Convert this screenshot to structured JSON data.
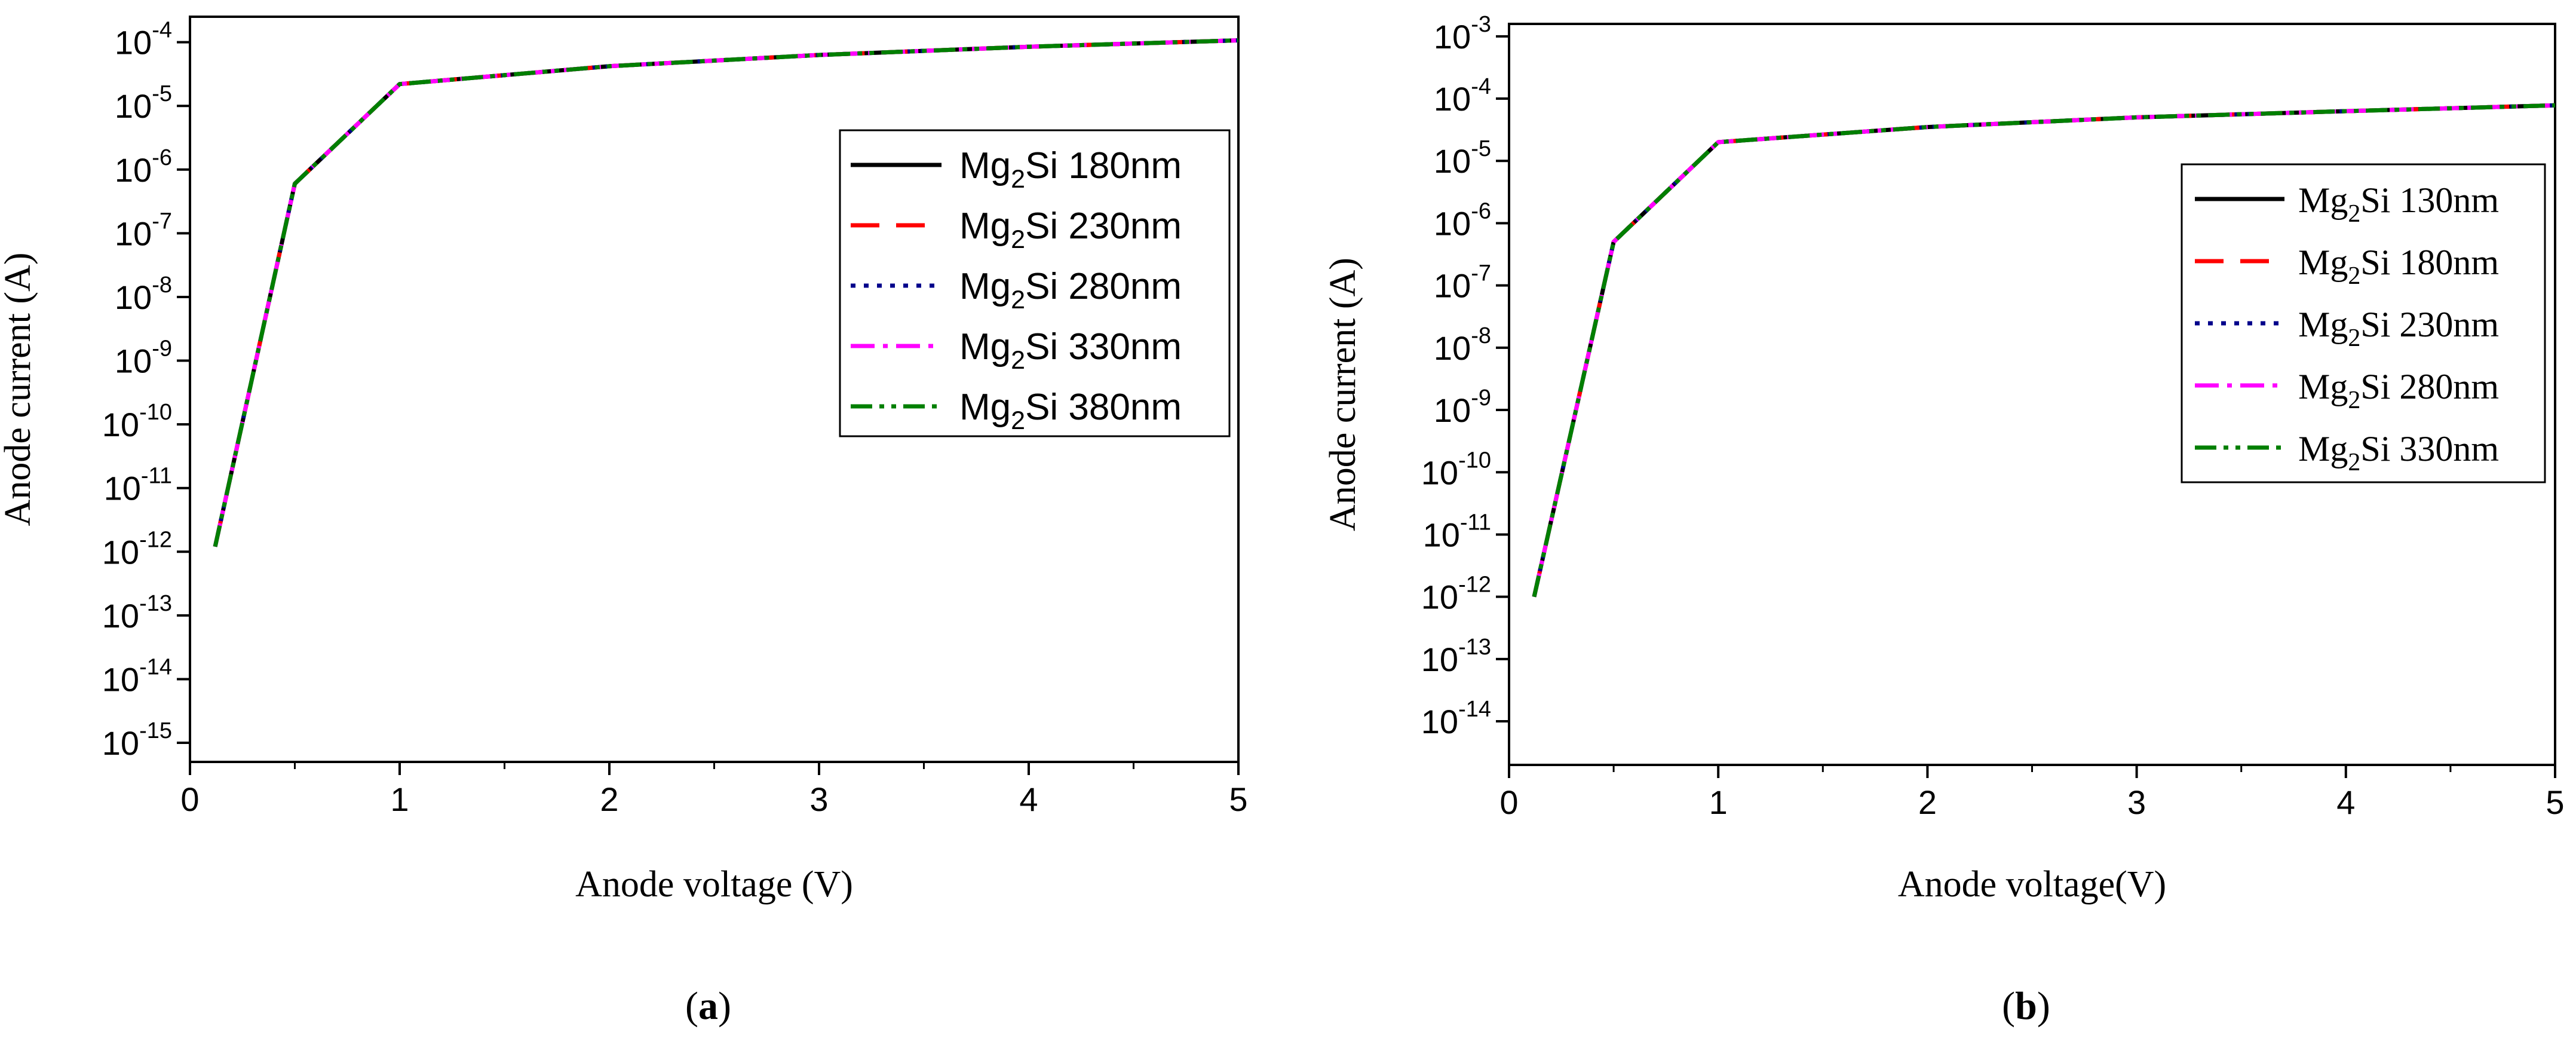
{
  "chart_data": [
    {
      "panel_label": "a",
      "type": "line",
      "xlabel": "Anode voltage (V)",
      "ylabel": "Anode current (A)",
      "xlim": [
        0,
        5
      ],
      "ylim_log10": [
        -15.3,
        -3.6
      ],
      "y_scale": "log",
      "x_ticks": [
        0,
        1,
        2,
        3,
        4,
        5
      ],
      "y_ticks_exp": [
        -4,
        -5,
        -6,
        -7,
        -8,
        -9,
        -10,
        -11,
        -12,
        -13,
        -14,
        -15
      ],
      "grid": false,
      "legend_position": "top-right",
      "legend_font": "sans",
      "x": [
        0.12,
        0.5,
        1,
        2,
        3,
        4,
        5
      ],
      "series": [
        {
          "name_main": "Mg",
          "name_sub": "2",
          "name_rest": "Si  180nm",
          "color": "#000000",
          "dash": "",
          "values": [
            1.2e-12,
            6e-07,
            2.2e-05,
            4.2e-05,
            6.3e-05,
            8.5e-05,
            0.000107
          ]
        },
        {
          "name_main": "Mg",
          "name_sub": "2",
          "name_rest": "Si  230nm",
          "color": "#ff0000",
          "dash": "48 28",
          "values": [
            1.2e-12,
            6e-07,
            2.2e-05,
            4.2e-05,
            6.3e-05,
            8.5e-05,
            0.000107
          ]
        },
        {
          "name_main": "Mg",
          "name_sub": "2",
          "name_rest": "Si  280nm",
          "color": "#00008b",
          "dash": "8 14",
          "values": [
            1.2e-12,
            6e-07,
            2.2e-05,
            4.2e-05,
            6.3e-05,
            8.5e-05,
            0.000107
          ]
        },
        {
          "name_main": "Mg",
          "name_sub": "2",
          "name_rest": "Si  330nm",
          "color": "#ff00ff",
          "dash": "40 14 8 14",
          "values": [
            1.2e-12,
            6e-07,
            2.2e-05,
            4.2e-05,
            6.3e-05,
            8.5e-05,
            0.000107
          ]
        },
        {
          "name_main": "Mg",
          "name_sub": "2",
          "name_rest": "Si  380nm",
          "color": "#007f00",
          "dash": "36 12 8 12 8 12",
          "values": [
            1.2e-12,
            6e-07,
            2.2e-05,
            4.2e-05,
            6.3e-05,
            8.5e-05,
            0.000107
          ]
        }
      ]
    },
    {
      "panel_label": "b",
      "type": "line",
      "xlabel": "Anode voltage(V)",
      "ylabel": "Anode current (A)",
      "xlim": [
        0,
        5
      ],
      "ylim_log10": [
        -14.7,
        -2.8
      ],
      "y_scale": "log",
      "x_ticks": [
        0,
        1,
        2,
        3,
        4,
        5
      ],
      "y_ticks_exp": [
        -3,
        -4,
        -5,
        -6,
        -7,
        -8,
        -9,
        -10,
        -11,
        -12,
        -13,
        -14
      ],
      "grid": false,
      "legend_position": "top-right",
      "legend_font": "serif",
      "x": [
        0.12,
        0.5,
        1,
        2,
        3,
        4,
        5
      ],
      "series": [
        {
          "name_main": "Mg",
          "name_sub": "2",
          "name_rest": "Si 130nm",
          "color": "#000000",
          "dash": "",
          "values": [
            1e-12,
            5e-07,
            2e-05,
            3.5e-05,
            5e-05,
            6.3e-05,
            7.8e-05
          ]
        },
        {
          "name_main": "Mg",
          "name_sub": "2",
          "name_rest": "Si 180nm",
          "color": "#ff0000",
          "dash": "48 28",
          "values": [
            1e-12,
            5e-07,
            2e-05,
            3.5e-05,
            5e-05,
            6.3e-05,
            7.8e-05
          ]
        },
        {
          "name_main": "Mg",
          "name_sub": "2",
          "name_rest": "Si 230nm",
          "color": "#00008b",
          "dash": "8 14",
          "values": [
            1e-12,
            5e-07,
            2e-05,
            3.5e-05,
            5e-05,
            6.3e-05,
            7.8e-05
          ]
        },
        {
          "name_main": "Mg",
          "name_sub": "2",
          "name_rest": "Si 280nm",
          "color": "#ff00ff",
          "dash": "40 14 8 14",
          "values": [
            1e-12,
            5e-07,
            2e-05,
            3.5e-05,
            5e-05,
            6.3e-05,
            7.8e-05
          ]
        },
        {
          "name_main": "Mg",
          "name_sub": "2",
          "name_rest": "Si 330nm",
          "color": "#007f00",
          "dash": "36 12 8 12 8 12",
          "values": [
            1e-12,
            5e-07,
            2e-05,
            3.5e-05,
            5e-05,
            6.3e-05,
            7.8e-05
          ]
        }
      ]
    }
  ]
}
